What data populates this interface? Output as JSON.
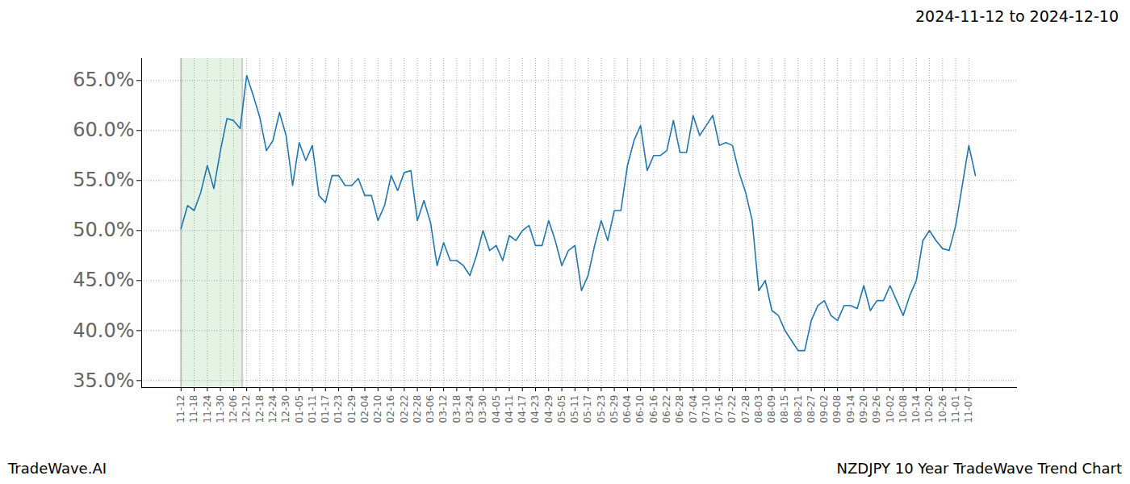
{
  "chart_data": {
    "type": "line",
    "title": "2024-11-12 to 2024-12-10",
    "footer_left": "TradeWave.AI",
    "footer_right": "NZDJPY 10 Year TradeWave Trend Chart",
    "highlight": {
      "start": "2024-11-12",
      "end": "2024-12-10"
    },
    "categories": [
      "11-12",
      null,
      "11-18",
      null,
      "11-24",
      null,
      "11-30",
      null,
      "12-06",
      null,
      "12-12",
      null,
      "12-18",
      null,
      "12-24",
      null,
      "12-30",
      null,
      "01-05",
      null,
      "01-11",
      null,
      "01-17",
      null,
      "01-23",
      null,
      "01-29",
      null,
      "02-04",
      null,
      "02-10",
      null,
      "02-16",
      null,
      "02-22",
      null,
      "02-28",
      null,
      "03-06",
      null,
      "03-12",
      null,
      "03-18",
      null,
      "03-24",
      null,
      "03-30",
      null,
      "04-05",
      null,
      "04-11",
      null,
      "04-17",
      null,
      "04-23",
      null,
      "04-29",
      null,
      "05-05",
      null,
      "05-11",
      null,
      "05-17",
      null,
      "05-23",
      null,
      "05-29",
      null,
      "06-04",
      null,
      "06-10",
      null,
      "06-16",
      null,
      "06-22",
      null,
      "06-28",
      null,
      "07-04",
      null,
      "07-10",
      null,
      "07-16",
      null,
      "07-22",
      null,
      "07-28",
      null,
      "08-03",
      null,
      "08-09",
      null,
      "08-15",
      null,
      "08-21",
      null,
      "08-27",
      null,
      "09-02",
      null,
      "09-08",
      null,
      "09-14",
      null,
      "09-20",
      null,
      "09-26",
      null,
      "10-02",
      null,
      "10-08",
      null,
      "10-14",
      null,
      "10-20",
      null,
      "10-26",
      null,
      "11-01",
      null,
      "11-07",
      null
    ],
    "values": [
      50.2,
      52.5,
      52.0,
      53.8,
      56.5,
      54.2,
      58.0,
      61.2,
      61.0,
      60.2,
      65.5,
      63.5,
      61.3,
      58.0,
      59.0,
      61.8,
      59.5,
      54.5,
      58.8,
      57.0,
      58.5,
      53.5,
      52.8,
      55.5,
      55.5,
      54.5,
      54.5,
      55.2,
      53.5,
      53.5,
      51.0,
      52.5,
      55.5,
      54.0,
      55.8,
      56.0,
      51.0,
      53.0,
      50.8,
      46.5,
      48.8,
      47.0,
      47.0,
      46.5,
      45.5,
      47.5,
      50.0,
      48.0,
      48.5,
      47.0,
      49.5,
      49.0,
      50.0,
      50.5,
      48.5,
      48.5,
      51.0,
      49.0,
      46.5,
      48.0,
      48.5,
      44.0,
      45.5,
      48.5,
      51.0,
      49.0,
      52.0,
      52.0,
      56.5,
      59.0,
      60.5,
      56.0,
      57.5,
      57.5,
      58.0,
      61.0,
      57.8,
      57.8,
      61.5,
      59.5,
      60.5,
      61.5,
      58.5,
      58.8,
      58.5,
      55.8,
      53.8,
      51.0,
      44.0,
      45.0,
      42.0,
      41.5,
      40.0,
      39.0,
      38.0,
      38.0,
      41.0,
      42.5,
      43.0,
      41.5,
      41.0,
      42.5,
      42.5,
      42.2,
      44.5,
      42.0,
      43.0,
      43.0,
      44.5,
      43.0,
      41.5,
      43.5,
      45.0,
      49.0,
      50.0,
      49.0,
      48.2,
      48.0,
      50.5,
      54.5,
      58.5,
      55.5
    ],
    "color": "#1f77b4",
    "xlim": [
      -6,
      127.4
    ],
    "ylim": [
      34.3,
      67.2
    ],
    "yticks": [
      {
        "value": 35,
        "label": "35.0%"
      },
      {
        "value": 40,
        "label": "40.0%"
      },
      {
        "value": 45,
        "label": "45.0%"
      },
      {
        "value": 50,
        "label": "50.0%"
      },
      {
        "value": 55,
        "label": "55.0%"
      },
      {
        "value": 60,
        "label": "60.0%"
      },
      {
        "value": 65,
        "label": "65.0%"
      }
    ],
    "grid": true
  }
}
